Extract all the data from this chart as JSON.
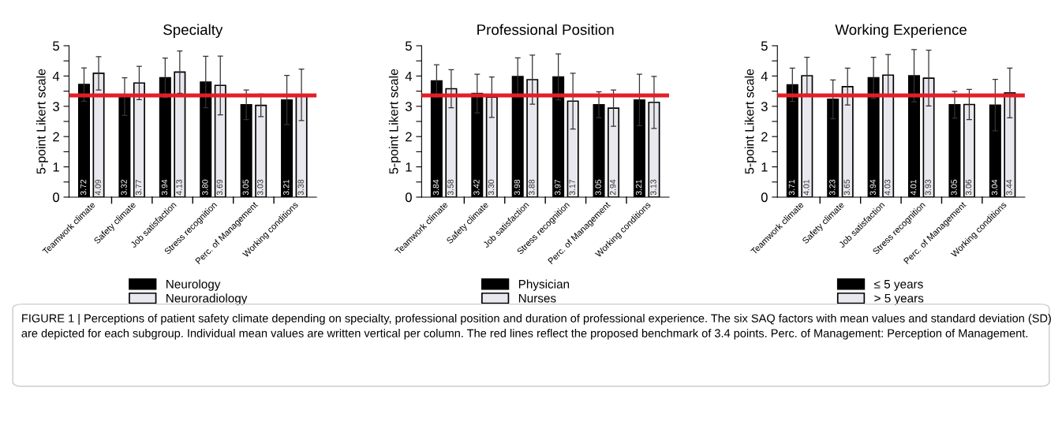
{
  "chart_data": [
    {
      "type": "bar",
      "title": "Specialty",
      "ylabel": "5-point Likert scale",
      "categories": [
        "Teamwork climate",
        "Safety climate",
        "Job satisfaction",
        "Stress recognition",
        "Perc. of Management",
        "Working conditions"
      ],
      "series": [
        {
          "name": "Neurology",
          "color": "#000000",
          "values": [
            3.72,
            3.32,
            3.94,
            3.8,
            3.05,
            3.21
          ],
          "errors": [
            0.55,
            0.62,
            0.65,
            0.85,
            0.49,
            0.81
          ],
          "value_labels": [
            "3.72",
            "3.32",
            "3.94",
            "3.80",
            "3.05",
            "3.21"
          ]
        },
        {
          "name": "Neuroradiology",
          "color": "#e8e8ee",
          "values": [
            4.09,
            3.77,
            4.13,
            3.69,
            3.03,
            3.38
          ],
          "errors": [
            0.55,
            0.55,
            0.7,
            0.97,
            0.37,
            0.85
          ],
          "value_labels": [
            "4.09",
            "3.77",
            "4.13",
            "3.69",
            "3.03",
            "3.38"
          ]
        }
      ],
      "ylim": [
        0,
        5
      ],
      "yticks": [
        0,
        {
          "value": 0.5,
          "label": null
        },
        1,
        {
          "value": 1.5,
          "label": null
        },
        2,
        {
          "value": 2.5,
          "label": null
        },
        3,
        {
          "value": 3.5,
          "label": null
        },
        4,
        {
          "value": 4.5,
          "label": null
        },
        5
      ],
      "ref_lines": [
        {
          "axis": "y",
          "value": 3.36,
          "color": "#e41e26"
        }
      ],
      "legend": "bottom",
      "grid": false,
      "annotations": [
        "FIGURE 1 | Perceptions of patient safety climate depending on specialty, professional position and duration of professional experience. The six SAQ factors with mean values and standard deviation (SD) are depicted for each subgroup. Individual mean values are written vertical per column. The red lines reflect the proposed benchmark of 3.4 points. Perc. of Management: Perception of Management."
      ]
    },
    {
      "type": "bar",
      "title": "Professional Position",
      "ylabel": "5-point Likert scale",
      "categories": [
        "Teamwork climate",
        "Safety climate",
        "Job satisfaction",
        "Stress recognition",
        "Perc. of Management",
        "Working conditions"
      ],
      "series": [
        {
          "name": "Physician",
          "color": "#000000",
          "values": [
            3.84,
            3.42,
            3.98,
            3.97,
            3.05,
            3.21
          ],
          "errors": [
            0.53,
            0.64,
            0.62,
            0.76,
            0.43,
            0.85
          ],
          "value_labels": [
            "3.84",
            "3.42",
            "3.98",
            "3.97",
            "3.05",
            "3.21"
          ]
        },
        {
          "name": "Nurses",
          "color": "#e8e8ee",
          "values": [
            3.58,
            3.3,
            3.88,
            3.17,
            2.94,
            3.13
          ],
          "errors": [
            0.63,
            0.67,
            0.81,
            0.92,
            0.6,
            0.86
          ],
          "value_labels": [
            "3.58",
            "3.30",
            "3.88",
            "3.17",
            "2.94",
            "3.13"
          ]
        }
      ],
      "ylim": [
        0,
        5
      ],
      "yticks": [
        0,
        {
          "value": 0.5,
          "label": null
        },
        1,
        {
          "value": 1.5,
          "label": null
        },
        2,
        {
          "value": 2.5,
          "label": null
        },
        3,
        {
          "value": 3.5,
          "label": null
        },
        4,
        {
          "value": 4.5,
          "label": null
        },
        5
      ],
      "ref_lines": [
        {
          "axis": "y",
          "value": 3.36,
          "color": "#e41e26"
        }
      ],
      "legend": "bottom",
      "grid": false
    },
    {
      "type": "bar",
      "title": "Working Experience",
      "ylabel": "5-point Likert scale",
      "categories": [
        "Teamwork climate",
        "Safety climate",
        "Job satisfaction",
        "Stress recognition",
        "Perc. of Management",
        "Working conditions"
      ],
      "series": [
        {
          "name": "≤ 5 years",
          "color": "#000000",
          "values": [
            3.71,
            3.23,
            3.94,
            4.01,
            3.05,
            3.04
          ],
          "errors": [
            0.55,
            0.64,
            0.68,
            0.86,
            0.44,
            0.85
          ],
          "value_labels": [
            "3.71",
            "3.23",
            "3.94",
            "4.01",
            "3.05",
            "3.04"
          ]
        },
        {
          "name": "> 5 years",
          "color": "#e8e8ee",
          "values": [
            4.01,
            3.65,
            4.03,
            3.93,
            3.06,
            3.44
          ],
          "errors": [
            0.61,
            0.61,
            0.68,
            0.92,
            0.5,
            0.82
          ],
          "value_labels": [
            "4.01",
            "3.65",
            "4.03",
            "3.93",
            "3.06",
            "3.44"
          ]
        }
      ],
      "ylim": [
        0,
        5
      ],
      "yticks": [
        0,
        {
          "value": 0.5,
          "label": null
        },
        1,
        {
          "value": 1.5,
          "label": null
        },
        2,
        {
          "value": 2.5,
          "label": null
        },
        3,
        {
          "value": 3.5,
          "label": null
        },
        4,
        {
          "value": 4.5,
          "label": null
        },
        5
      ],
      "ref_lines": [
        {
          "axis": "y",
          "value": 3.36,
          "color": "#e41e26"
        }
      ],
      "legend": "bottom",
      "grid": false
    }
  ]
}
